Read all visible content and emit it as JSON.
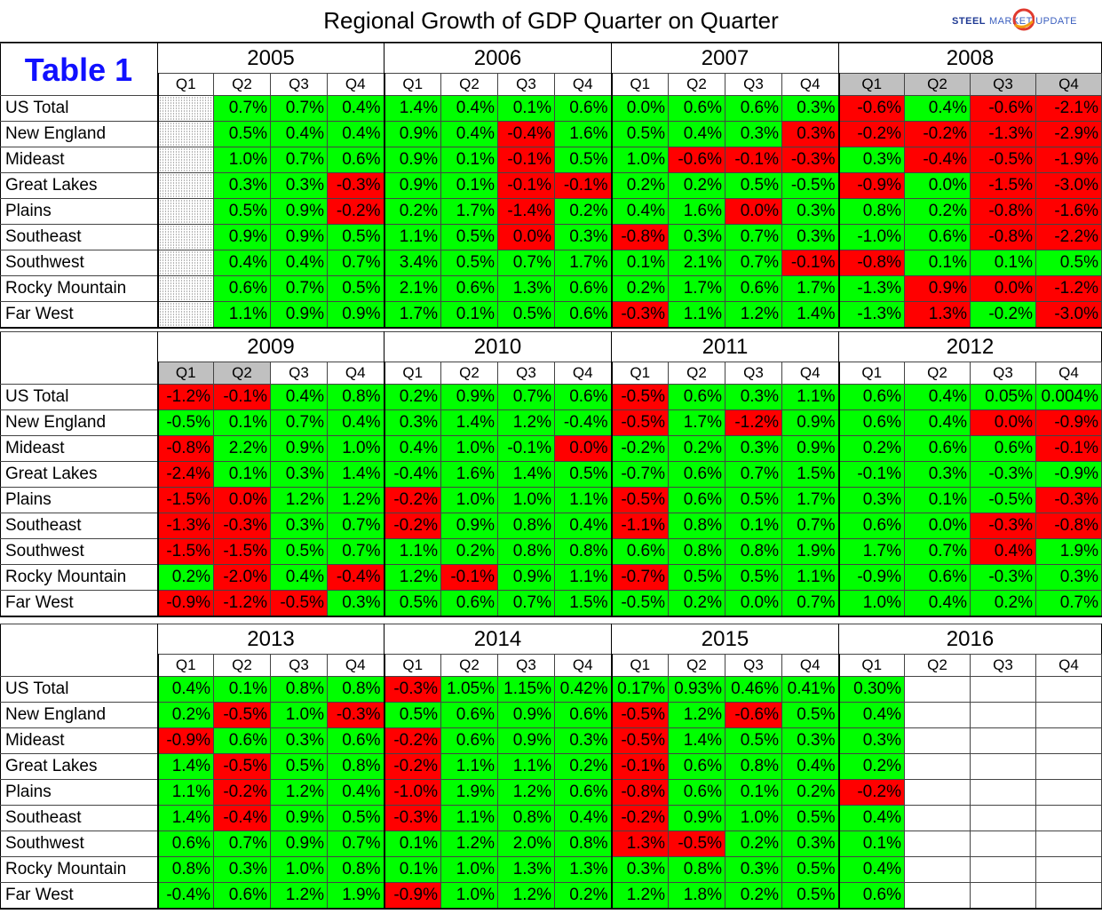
{
  "title": "Regional Growth of GDP Quarter on Quarter",
  "logo": {
    "brand_bold": "STEEL",
    "brand_rest": "MARKET UPDATE",
    "colors": {
      "primary": "#1f3a93",
      "accent_red": "#e03a2f",
      "accent_orange": "#f39c12"
    }
  },
  "table_label": "Table 1",
  "colors": {
    "positive": "#00ff00",
    "negative": "#ff0000",
    "shaded_header": "#c0c0c0",
    "label_blue": "#1010ff"
  },
  "chart_data": {
    "type": "table",
    "title": "Regional Growth of GDP Quarter on Quarter",
    "quarter_labels": [
      "Q1",
      "Q2",
      "Q3",
      "Q4"
    ],
    "regions": [
      "US Total",
      "New England",
      "Mideast",
      "Great Lakes",
      "Plains",
      "Southeast",
      "Southwest",
      "Rocky Mountain",
      "Far West"
    ],
    "blocks": [
      {
        "years": [
          "2005",
          "2006",
          "2007",
          "2008"
        ],
        "shaded_quarters": [
          [],
          [],
          [],
          [
            0,
            1,
            2,
            3
          ]
        ],
        "rows": [
          [
            "",
            "0.7%",
            "0.7%",
            "0.4%",
            "1.4%",
            "0.4%",
            "0.1%",
            "0.6%",
            "0.0%",
            "0.6%",
            "0.6%",
            "0.3%",
            "-0.6%",
            "0.4%",
            "-0.6%",
            "-2.1%"
          ],
          [
            "",
            "0.5%",
            "0.4%",
            "0.4%",
            "0.9%",
            "0.4%",
            "-0.4%",
            "1.6%",
            "0.5%",
            "0.4%",
            "0.3%",
            "0.3%",
            "-0.2%",
            "-0.2%",
            "-1.3%",
            "-2.9%"
          ],
          [
            "",
            "1.0%",
            "0.7%",
            "0.6%",
            "0.9%",
            "0.1%",
            "-0.1%",
            "0.5%",
            "1.0%",
            "-0.6%",
            "-0.1%",
            "-0.3%",
            "0.3%",
            "-0.4%",
            "-0.5%",
            "-1.9%"
          ],
          [
            "",
            "0.3%",
            "0.3%",
            "-0.3%",
            "0.9%",
            "0.1%",
            "-0.1%",
            "-0.1%",
            "0.2%",
            "0.2%",
            "0.5%",
            "-0.5%",
            "-0.9%",
            "0.0%",
            "-1.5%",
            "-3.0%"
          ],
          [
            "",
            "0.5%",
            "0.9%",
            "-0.2%",
            "0.2%",
            "1.7%",
            "-1.4%",
            "0.2%",
            "0.4%",
            "1.6%",
            "0.0%",
            "0.3%",
            "0.8%",
            "0.2%",
            "-0.8%",
            "-1.6%"
          ],
          [
            "",
            "0.9%",
            "0.9%",
            "0.5%",
            "1.1%",
            "0.5%",
            "0.0%",
            "0.3%",
            "-0.8%",
            "0.3%",
            "0.7%",
            "0.3%",
            "-1.0%",
            "0.6%",
            "-0.8%",
            "-2.2%"
          ],
          [
            "",
            "0.4%",
            "0.4%",
            "0.7%",
            "3.4%",
            "0.5%",
            "0.7%",
            "1.7%",
            "0.1%",
            "2.1%",
            "0.7%",
            "-0.1%",
            "-0.8%",
            "0.1%",
            "0.1%",
            "0.5%"
          ],
          [
            "",
            "0.6%",
            "0.7%",
            "0.5%",
            "2.1%",
            "0.6%",
            "1.3%",
            "0.6%",
            "0.2%",
            "1.7%",
            "0.6%",
            "1.7%",
            "-1.3%",
            "0.9%",
            "0.0%",
            "-1.2%"
          ],
          [
            "",
            "1.1%",
            "0.9%",
            "0.9%",
            "1.7%",
            "0.1%",
            "0.5%",
            "0.6%",
            "-0.3%",
            "1.1%",
            "1.2%",
            "1.4%",
            "-1.3%",
            "1.3%",
            "-0.2%",
            "-3.0%"
          ]
        ],
        "colors": [
          "Hpppppppppppnpnn",
          "Hpppppnppppnnnnn",
          "Hpppppnppnnnpnnn",
          "Hppnppnnppppnpnn",
          "Hppnppnpppnpppnn",
          "Hpppppnpnpppppnn",
          "Hppppppppppnnppp",
          "Hppppppppppppnnn",
          "Hpppppppnppppnpn"
        ]
      },
      {
        "years": [
          "2009",
          "2010",
          "2011",
          "2012"
        ],
        "shaded_quarters": [
          [
            0,
            1
          ],
          [],
          [],
          []
        ],
        "rows": [
          [
            "-1.2%",
            "-0.1%",
            "0.4%",
            "0.8%",
            "0.2%",
            "0.9%",
            "0.7%",
            "0.6%",
            "-0.5%",
            "0.6%",
            "0.3%",
            "1.1%",
            "0.6%",
            "0.4%",
            "0.05%",
            "0.004%"
          ],
          [
            "-0.5%",
            "0.1%",
            "0.7%",
            "0.4%",
            "0.3%",
            "1.4%",
            "1.2%",
            "-0.4%",
            "-0.5%",
            "1.7%",
            "-1.2%",
            "0.9%",
            "0.6%",
            "0.4%",
            "0.0%",
            "-0.9%"
          ],
          [
            "-0.8%",
            "2.2%",
            "0.9%",
            "1.0%",
            "0.4%",
            "1.0%",
            "-0.1%",
            "0.0%",
            "-0.2%",
            "0.2%",
            "0.3%",
            "0.9%",
            "0.2%",
            "0.6%",
            "0.6%",
            "-0.1%"
          ],
          [
            "-2.4%",
            "0.1%",
            "0.3%",
            "1.4%",
            "-0.4%",
            "1.6%",
            "1.4%",
            "0.5%",
            "-0.7%",
            "0.6%",
            "0.7%",
            "1.5%",
            "-0.1%",
            "0.3%",
            "-0.3%",
            "-0.9%"
          ],
          [
            "-1.5%",
            "0.0%",
            "1.2%",
            "1.2%",
            "-0.2%",
            "1.0%",
            "1.0%",
            "1.1%",
            "-0.5%",
            "0.6%",
            "0.5%",
            "1.7%",
            "0.3%",
            "0.1%",
            "-0.5%",
            "-0.3%"
          ],
          [
            "-1.3%",
            "-0.3%",
            "0.3%",
            "0.7%",
            "-0.2%",
            "0.9%",
            "0.8%",
            "0.4%",
            "-1.1%",
            "0.8%",
            "0.1%",
            "0.7%",
            "0.6%",
            "0.0%",
            "-0.3%",
            "-0.8%"
          ],
          [
            "-1.5%",
            "-1.5%",
            "0.5%",
            "0.7%",
            "1.1%",
            "0.2%",
            "0.8%",
            "0.8%",
            "0.6%",
            "0.8%",
            "0.8%",
            "1.9%",
            "1.7%",
            "0.7%",
            "0.4%",
            "1.9%"
          ],
          [
            "0.2%",
            "-2.0%",
            "0.4%",
            "-0.4%",
            "1.2%",
            "-0.1%",
            "0.9%",
            "1.1%",
            "-0.7%",
            "0.5%",
            "0.5%",
            "1.1%",
            "-0.9%",
            "0.6%",
            "-0.3%",
            "0.3%"
          ],
          [
            "-0.9%",
            "-1.2%",
            "-0.5%",
            "0.3%",
            "0.5%",
            "0.6%",
            "0.7%",
            "1.5%",
            "-0.5%",
            "0.2%",
            "0.0%",
            "0.7%",
            "1.0%",
            "0.4%",
            "0.2%",
            "0.7%"
          ]
        ],
        "colors": [
          "nnppppppnppppppp",
          "ppppppppnpnpppnn",
          "nppppppnpppppppn",
          "nppppppppppppppp",
          "nnppnpppnppppppn",
          "nnppnpppnpppppnn",
          "nnppppppppppppnp",
          "pnpnpnppnppppppp",
          "nnnppppppppppppp"
        ]
      },
      {
        "years": [
          "2013",
          "2014",
          "2015",
          "2016"
        ],
        "shaded_quarters": [
          [],
          [],
          [],
          []
        ],
        "rows": [
          [
            "0.4%",
            "0.1%",
            "0.8%",
            "0.8%",
            "-0.3%",
            "1.05%",
            "1.15%",
            "0.42%",
            "0.17%",
            "0.93%",
            "0.46%",
            "0.41%",
            "0.30%",
            "",
            "",
            ""
          ],
          [
            "0.2%",
            "-0.5%",
            "1.0%",
            "-0.3%",
            "0.5%",
            "0.6%",
            "0.9%",
            "0.6%",
            "-0.5%",
            "1.2%",
            "-0.6%",
            "0.5%",
            "0.4%",
            "",
            "",
            ""
          ],
          [
            "-0.9%",
            "0.6%",
            "0.3%",
            "0.6%",
            "-0.2%",
            "0.6%",
            "0.9%",
            "0.3%",
            "-0.5%",
            "1.4%",
            "0.5%",
            "0.3%",
            "0.3%",
            "",
            "",
            ""
          ],
          [
            "1.4%",
            "-0.5%",
            "0.5%",
            "0.8%",
            "-0.2%",
            "1.1%",
            "1.1%",
            "0.2%",
            "-0.1%",
            "0.6%",
            "0.8%",
            "0.4%",
            "0.2%",
            "",
            "",
            ""
          ],
          [
            "1.1%",
            "-0.2%",
            "1.2%",
            "0.4%",
            "-1.0%",
            "1.9%",
            "1.2%",
            "0.6%",
            "-0.8%",
            "0.6%",
            "0.1%",
            "0.2%",
            "-0.2%",
            "",
            "",
            ""
          ],
          [
            "1.4%",
            "-0.4%",
            "0.9%",
            "0.5%",
            "-0.3%",
            "1.1%",
            "0.8%",
            "0.4%",
            "-0.2%",
            "0.9%",
            "1.0%",
            "0.5%",
            "0.4%",
            "",
            "",
            ""
          ],
          [
            "0.6%",
            "0.7%",
            "0.9%",
            "0.7%",
            "0.1%",
            "1.2%",
            "2.0%",
            "0.8%",
            "1.3%",
            "-0.5%",
            "0.2%",
            "0.3%",
            "0.1%",
            "",
            "",
            ""
          ],
          [
            "0.8%",
            "0.3%",
            "1.0%",
            "0.8%",
            "0.1%",
            "1.0%",
            "1.3%",
            "1.3%",
            "0.3%",
            "0.8%",
            "0.3%",
            "0.5%",
            "0.4%",
            "",
            "",
            ""
          ],
          [
            "-0.4%",
            "0.6%",
            "1.2%",
            "1.9%",
            "-0.9%",
            "1.0%",
            "1.2%",
            "0.2%",
            "1.2%",
            "1.8%",
            "0.2%",
            "0.5%",
            "0.6%",
            "",
            "",
            ""
          ]
        ],
        "colors": [
          "ppppnpppppppp000",
          "pnpnppppnpnpp000",
          "npppnpppnpppp000",
          "pnppnpppnpppp000",
          "pnppnpppnpppn000",
          "pnppnpppnpppp000",
          "ppppppppnnppp000",
          "ppppppppppppp000",
          "ppppnppppppp p000"
        ]
      }
    ]
  }
}
